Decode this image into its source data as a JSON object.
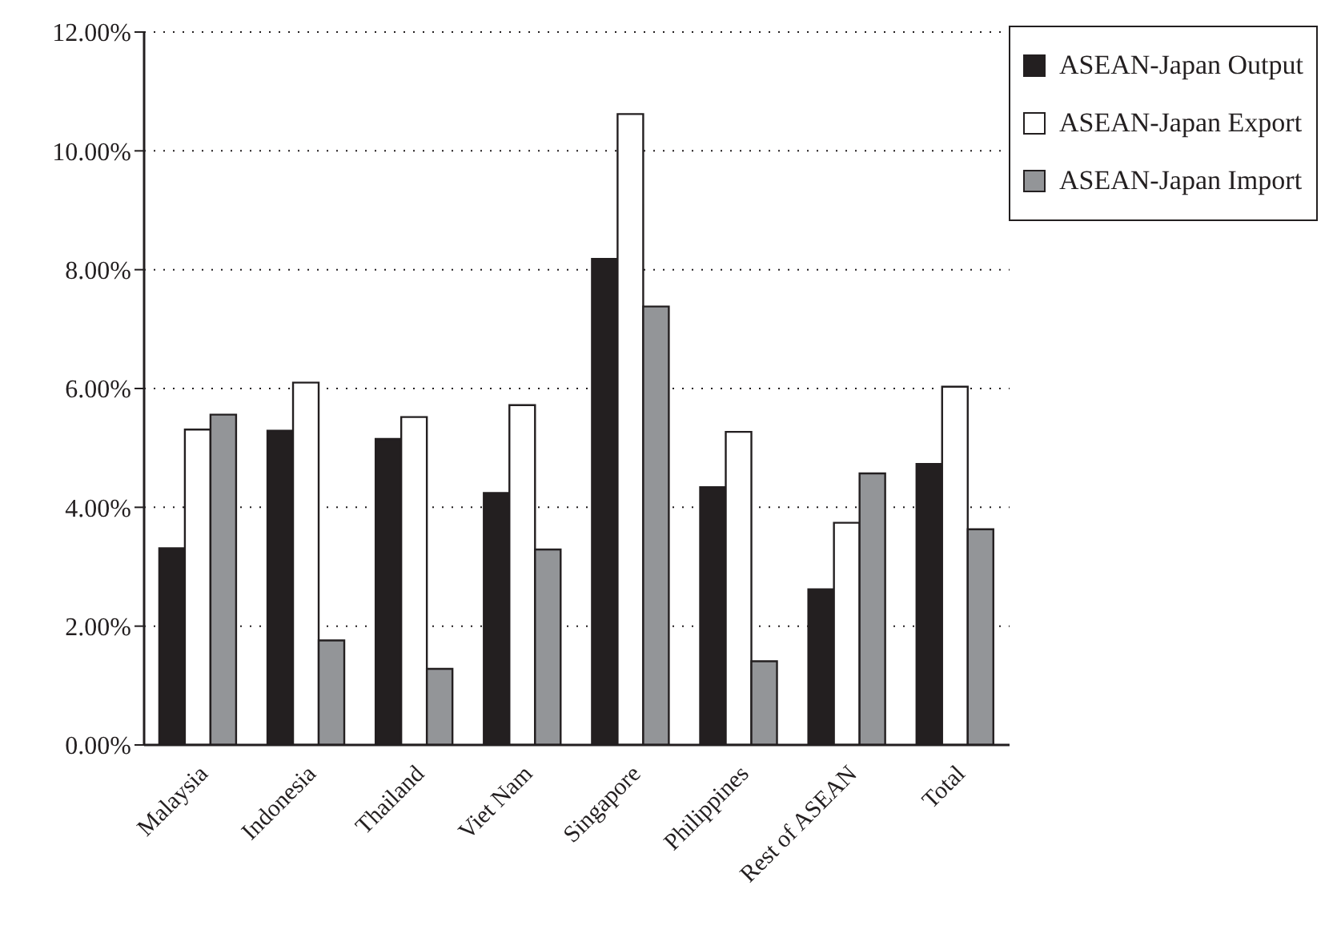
{
  "chart_data": {
    "type": "bar",
    "categories": [
      "Malaysia",
      "Indonesia",
      "Thailand",
      "Viet Nam",
      "Singapore",
      "Philippines",
      "Rest of ASEAN",
      "Total"
    ],
    "series": [
      {
        "name": "ASEAN-Japan Output",
        "color": "#231f20",
        "values": [
          3.31,
          5.29,
          5.15,
          4.24,
          8.18,
          4.34,
          2.62,
          4.73
        ]
      },
      {
        "name": "ASEAN-Japan Export",
        "color": "#ffffff",
        "values": [
          5.31,
          6.1,
          5.52,
          5.72,
          10.62,
          5.27,
          3.74,
          6.03
        ]
      },
      {
        "name": "ASEAN-Japan Import",
        "color": "#939598",
        "values": [
          5.56,
          1.76,
          1.28,
          3.29,
          7.38,
          1.41,
          4.57,
          3.63
        ]
      }
    ],
    "ylim": [
      0,
      12
    ],
    "yticks": [
      {
        "value": 0,
        "label": "0.00%"
      },
      {
        "value": 2,
        "label": "2.00%"
      },
      {
        "value": 4,
        "label": "4.00%"
      },
      {
        "value": 6,
        "label": "6.00%"
      },
      {
        "value": 8,
        "label": "8.00%"
      },
      {
        "value": 10,
        "label": "10.00%"
      },
      {
        "value": 12,
        "label": "12.00%"
      }
    ],
    "grid": "y",
    "legend": "top right"
  }
}
